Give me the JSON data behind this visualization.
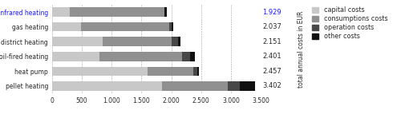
{
  "categories": [
    "Infrared heating",
    "gas heating",
    "district heating",
    "oil-fired heating",
    "heat pump",
    "pellet heating"
  ],
  "totals": [
    "1.929",
    "2.037",
    "2.151",
    "2.401",
    "2.457",
    "3.402"
  ],
  "segments": {
    "capital": [
      300,
      480,
      850,
      800,
      1600,
      1850
    ],
    "consumption": [
      1580,
      1480,
      1150,
      1380,
      770,
      1100
    ],
    "operation": [
      0,
      50,
      110,
      130,
      60,
      200
    ],
    "other": [
      49,
      27,
      41,
      91,
      27,
      252
    ]
  },
  "colors": {
    "capital": "#c8c8c8",
    "consumption": "#909090",
    "operation": "#484848",
    "other": "#101010"
  },
  "legend_labels": [
    "capital costs",
    "consumptions costs",
    "operation costs",
    "other costs"
  ],
  "ylabel": "total annual costs in EUR",
  "xlim": [
    0,
    3500
  ],
  "xticks": [
    0,
    500,
    1000,
    1500,
    2000,
    2500,
    3000,
    3500
  ],
  "xtick_labels": [
    "0",
    "500",
    "1.000",
    "1.500",
    "2.000",
    "2.500",
    "3.000",
    "3.500"
  ],
  "grid_color": "#a0a0a0",
  "background_color": "#ffffff",
  "first_label_color": "#1a1aff",
  "other_label_color": "#282828",
  "fontsize_ticks": 5.5,
  "fontsize_ylabel": 5.5,
  "fontsize_totals": 6.0,
  "fontsize_legend": 5.8,
  "bar_height": 0.62
}
